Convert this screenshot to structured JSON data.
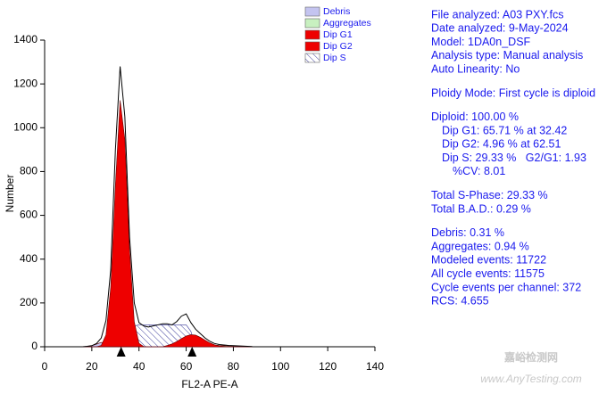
{
  "chart_data": {
    "type": "area",
    "xlabel": "FL2-A PE-A",
    "ylabel": "Number",
    "xlim": [
      0,
      140
    ],
    "xticks": [
      0,
      20,
      40,
      60,
      80,
      100,
      120,
      140
    ],
    "ylim": [
      0,
      1400
    ],
    "yticks": [
      0,
      200,
      400,
      600,
      800,
      1000,
      1200,
      1400
    ],
    "x": [
      16,
      18,
      20,
      22,
      24,
      26,
      28,
      30,
      32,
      34,
      36,
      38,
      40,
      42,
      44,
      46,
      48,
      50,
      52,
      54,
      56,
      58,
      60,
      62,
      64,
      66,
      68,
      70,
      72,
      74,
      76,
      78,
      80,
      82,
      84,
      86,
      88
    ],
    "histogram": {
      "color": "#000000",
      "values": [
        0,
        2,
        5,
        15,
        40,
        120,
        350,
        900,
        1280,
        1050,
        500,
        200,
        110,
        95,
        90,
        95,
        100,
        105,
        105,
        100,
        115,
        140,
        150,
        110,
        80,
        60,
        40,
        25,
        15,
        10,
        8,
        6,
        5,
        4,
        3,
        2,
        1
      ]
    },
    "series": [
      {
        "name": "Debris",
        "color": "#c4c4f0",
        "style": "area",
        "values": [
          0,
          2,
          5,
          12,
          20,
          15,
          8,
          4,
          0,
          0,
          0,
          0,
          0,
          0,
          0,
          0,
          0,
          0,
          0,
          0,
          0,
          0,
          0,
          0,
          0,
          0,
          0,
          0,
          0,
          0,
          0,
          0,
          0,
          0,
          0,
          0,
          0
        ]
      },
      {
        "name": "Aggregates",
        "color": "#c8f0c0",
        "style": "area",
        "values": [
          0,
          0,
          0,
          0,
          0,
          0,
          0,
          0,
          0,
          0,
          0,
          0,
          0,
          0,
          0,
          0,
          0,
          0,
          0,
          0,
          0,
          0,
          0,
          0,
          0,
          10,
          10,
          10,
          8,
          6,
          5,
          4,
          4,
          3,
          2,
          1,
          0
        ]
      },
      {
        "name": "Dip S",
        "color": "#3a3a9a",
        "style": "hatch",
        "values": [
          0,
          0,
          0,
          0,
          0,
          0,
          0,
          0,
          0,
          40,
          80,
          95,
          100,
          100,
          100,
          100,
          100,
          100,
          100,
          100,
          100,
          100,
          100,
          70,
          0,
          0,
          0,
          0,
          0,
          0,
          0,
          0,
          0,
          0,
          0,
          0,
          0
        ]
      },
      {
        "name": "Dip G1",
        "color": "#ee0000",
        "style": "area",
        "values": [
          0,
          0,
          0,
          0,
          6,
          54,
          269,
          739,
          1125,
          947,
          442,
          114,
          16,
          1,
          0,
          0,
          0,
          0,
          0,
          0,
          0,
          0,
          0,
          0,
          0,
          0,
          0,
          0,
          0,
          0,
          0,
          0,
          0,
          0,
          0,
          0,
          0
        ]
      },
      {
        "name": "Dip G2",
        "color": "#ee0000",
        "style": "area",
        "values": [
          0,
          0,
          0,
          0,
          0,
          0,
          0,
          0,
          0,
          0,
          0,
          0,
          0,
          0,
          0,
          0,
          0,
          0,
          6,
          13,
          24,
          37,
          49,
          55,
          53,
          43,
          30,
          18,
          9,
          4,
          2,
          0,
          0,
          0,
          0,
          0,
          0
        ]
      }
    ],
    "legend_order": [
      0,
      1,
      3,
      4,
      2
    ],
    "markers": [
      32.42,
      62.51
    ],
    "info": [
      [
        "File analyzed: A03 PXY.fcs",
        "Date analyzed: 9-May-2024",
        "Model: 1DA0n_DSF",
        "Analysis type: Manual analysis",
        "Auto Linearity: No"
      ],
      [
        "Ploidy Mode: First cycle is diploid"
      ],
      [
        "Diploid: 100.00 %",
        "Dip G1: 65.71 % at 32.42",
        "Dip G2: 4.96 % at 62.51",
        "Dip S: 29.33 %   G2/G1: 1.93",
        "%CV: 8.01"
      ],
      [
        "Total S-Phase: 29.33 %",
        "Total B.A.D.: 0.29 %"
      ],
      [
        "Debris: 0.31 %",
        "Aggregates: 0.94 %",
        "Modeled events: 11722",
        "All cycle events: 11575",
        "Cycle events per channel: 372",
        "RCS: 4.655"
      ]
    ],
    "watermark": [
      "嘉峪检测网",
      "www.AnyTesting.com"
    ]
  }
}
